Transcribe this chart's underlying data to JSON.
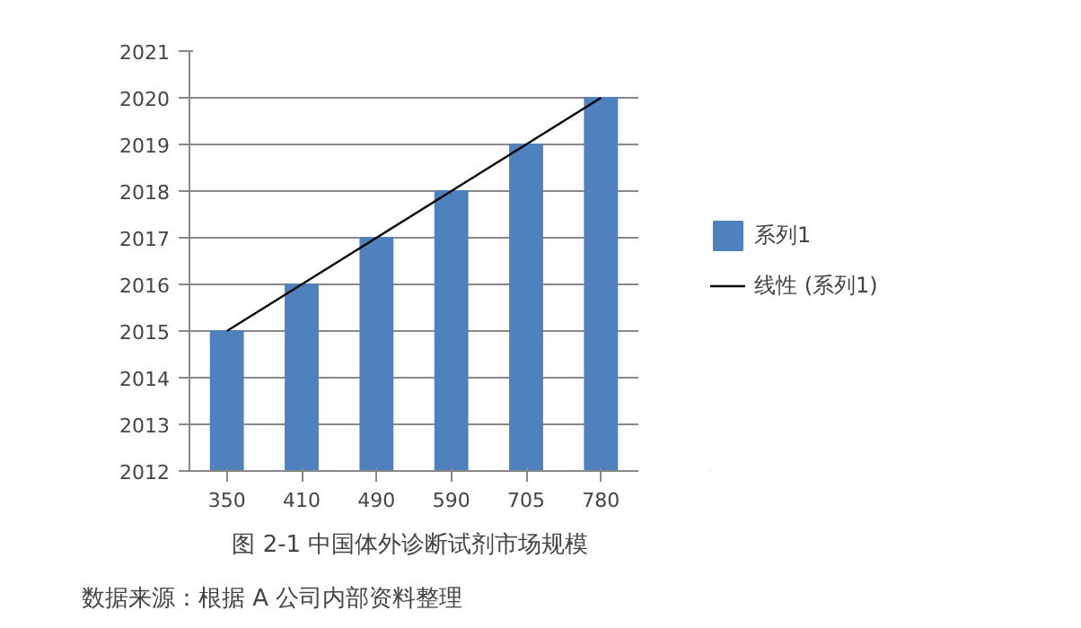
{
  "chart_data": {
    "type": "bar",
    "categories": [
      "350",
      "410",
      "490",
      "590",
      "705",
      "780"
    ],
    "series": [
      {
        "name": "系列1",
        "color": "#4f81bd",
        "values": [
          2015,
          2016,
          2017,
          2018,
          2019,
          2020
        ]
      },
      {
        "name": "线性 (系列1)",
        "type": "line",
        "color": "#000000",
        "values": [
          2015,
          2016,
          2017,
          2018,
          2019,
          2020
        ]
      }
    ],
    "ylim": [
      2012,
      2021
    ],
    "yticks": [
      2012,
      2013,
      2014,
      2015,
      2016,
      2017,
      2018,
      2019,
      2020,
      2021
    ],
    "grid": "y",
    "legend": "right",
    "title": "图 2-1  中国体外诊断试剂市场规模",
    "annotations": [
      "数据来源：根据 A 公司内部资料整理"
    ]
  }
}
